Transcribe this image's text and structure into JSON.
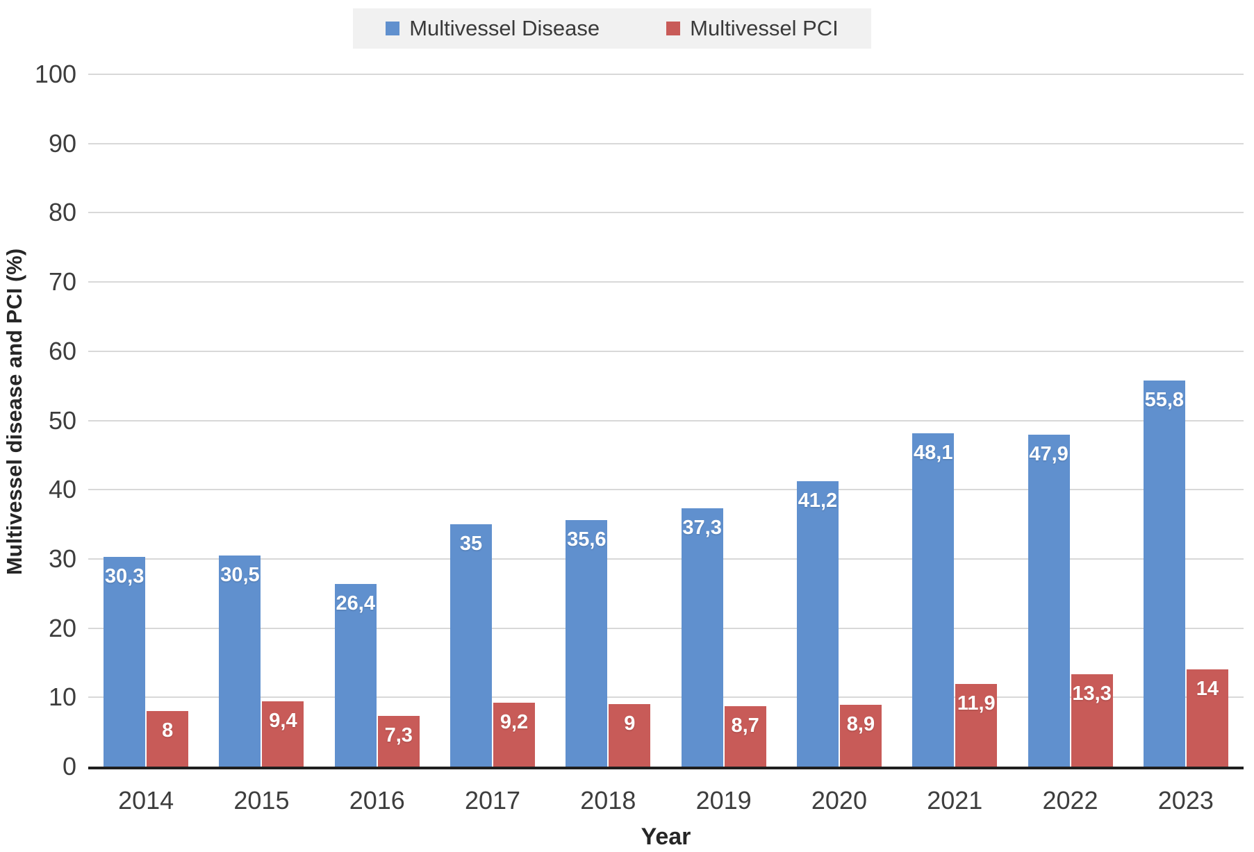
{
  "colors": {
    "background": "#ffffff",
    "legend_background": "#f1f1f1",
    "gridline": "#d8d8d8",
    "axis_line": "#1f1f1f",
    "tick_text": "#3d3d3d",
    "bar_label_text": "#ffffff"
  },
  "chart_data": {
    "type": "bar",
    "title": "",
    "categories": [
      "2014",
      "2015",
      "2016",
      "2017",
      "2018",
      "2019",
      "2020",
      "2021",
      "2022",
      "2023"
    ],
    "series": [
      {
        "name": "Multivessel Disease",
        "color": "#6090ce",
        "values": [
          30.3,
          30.5,
          26.4,
          35,
          35.6,
          37.3,
          41.2,
          48.1,
          47.9,
          55.8
        ],
        "labels": [
          "30,3",
          "30,5",
          "26,4",
          "35",
          "35,6",
          "37,3",
          "41,2",
          "48,1",
          "47,9",
          "55,8"
        ]
      },
      {
        "name": "Multivessel PCI",
        "color": "#c85b58",
        "values": [
          8,
          9.4,
          7.3,
          9.2,
          9,
          8.7,
          8.9,
          11.9,
          13.3,
          14
        ],
        "labels": [
          "8",
          "9,4",
          "7,3",
          "9,2",
          "9",
          "8,7",
          "8,9",
          "11,9",
          "13,3",
          "14"
        ]
      }
    ],
    "xlabel": "Year",
    "ylabel": "Multivessel disease and PCI (%)",
    "ylim": [
      0,
      100
    ],
    "yticks": [
      0,
      10,
      20,
      30,
      40,
      50,
      60,
      70,
      80,
      90,
      100
    ],
    "grid": true,
    "legend_position": "top",
    "decimal_separator": ","
  }
}
